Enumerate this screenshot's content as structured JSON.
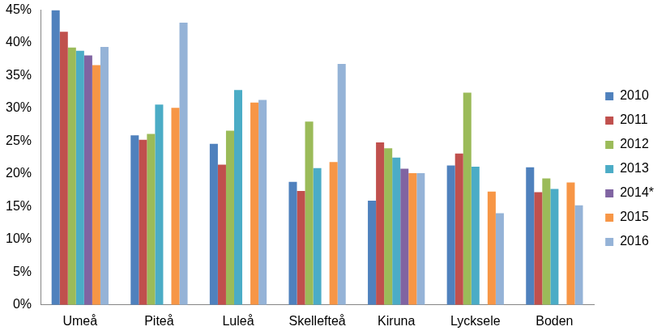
{
  "chart_data": {
    "type": "bar",
    "categories": [
      "Umeå",
      "Piteå",
      "Luleå",
      "Skellefteå",
      "Kiruna",
      "Lycksele",
      "Boden"
    ],
    "series": [
      {
        "name": "2010",
        "color": "#4F81BD",
        "values": [
          45,
          25.9,
          24.6,
          18.8,
          15.9,
          21.3,
          21.0
        ]
      },
      {
        "name": "2011",
        "color": "#C0504D",
        "values": [
          41.7,
          25.2,
          21.4,
          17.4,
          24.8,
          23.1,
          17.2
        ]
      },
      {
        "name": "2012",
        "color": "#9BBB59",
        "values": [
          39.3,
          26.1,
          26.6,
          28.0,
          23.9,
          32.4,
          19.3
        ]
      },
      {
        "name": "2013",
        "color": "#4BACC6",
        "values": [
          38.8,
          30.6,
          32.8,
          20.9,
          22.5,
          21.1,
          17.7
        ]
      },
      {
        "name": "2014*",
        "color": "#8064A2",
        "values": [
          38.1,
          null,
          null,
          null,
          20.8,
          null,
          null
        ]
      },
      {
        "name": "2015",
        "color": "#F79646",
        "values": [
          36.6,
          30.1,
          30.9,
          21.8,
          20.1,
          17.3,
          18.7
        ]
      },
      {
        "name": "2016",
        "color": "#95B3D7",
        "values": [
          39.4,
          43.1,
          31.3,
          36.8,
          20.1,
          14.0,
          15.2
        ]
      }
    ],
    "ylim": [
      0,
      45
    ],
    "yticks": [
      {
        "value": 0,
        "label": "0%"
      },
      {
        "value": 5,
        "label": "5%"
      },
      {
        "value": 10,
        "label": "10%"
      },
      {
        "value": 15,
        "label": "15%"
      },
      {
        "value": 20,
        "label": "20%"
      },
      {
        "value": 25,
        "label": "25%"
      },
      {
        "value": 30,
        "label": "30%"
      },
      {
        "value": 35,
        "label": "35%"
      },
      {
        "value": 40,
        "label": "40%"
      },
      {
        "value": 45,
        "label": "45%"
      }
    ],
    "grid": false,
    "legend": "right"
  }
}
